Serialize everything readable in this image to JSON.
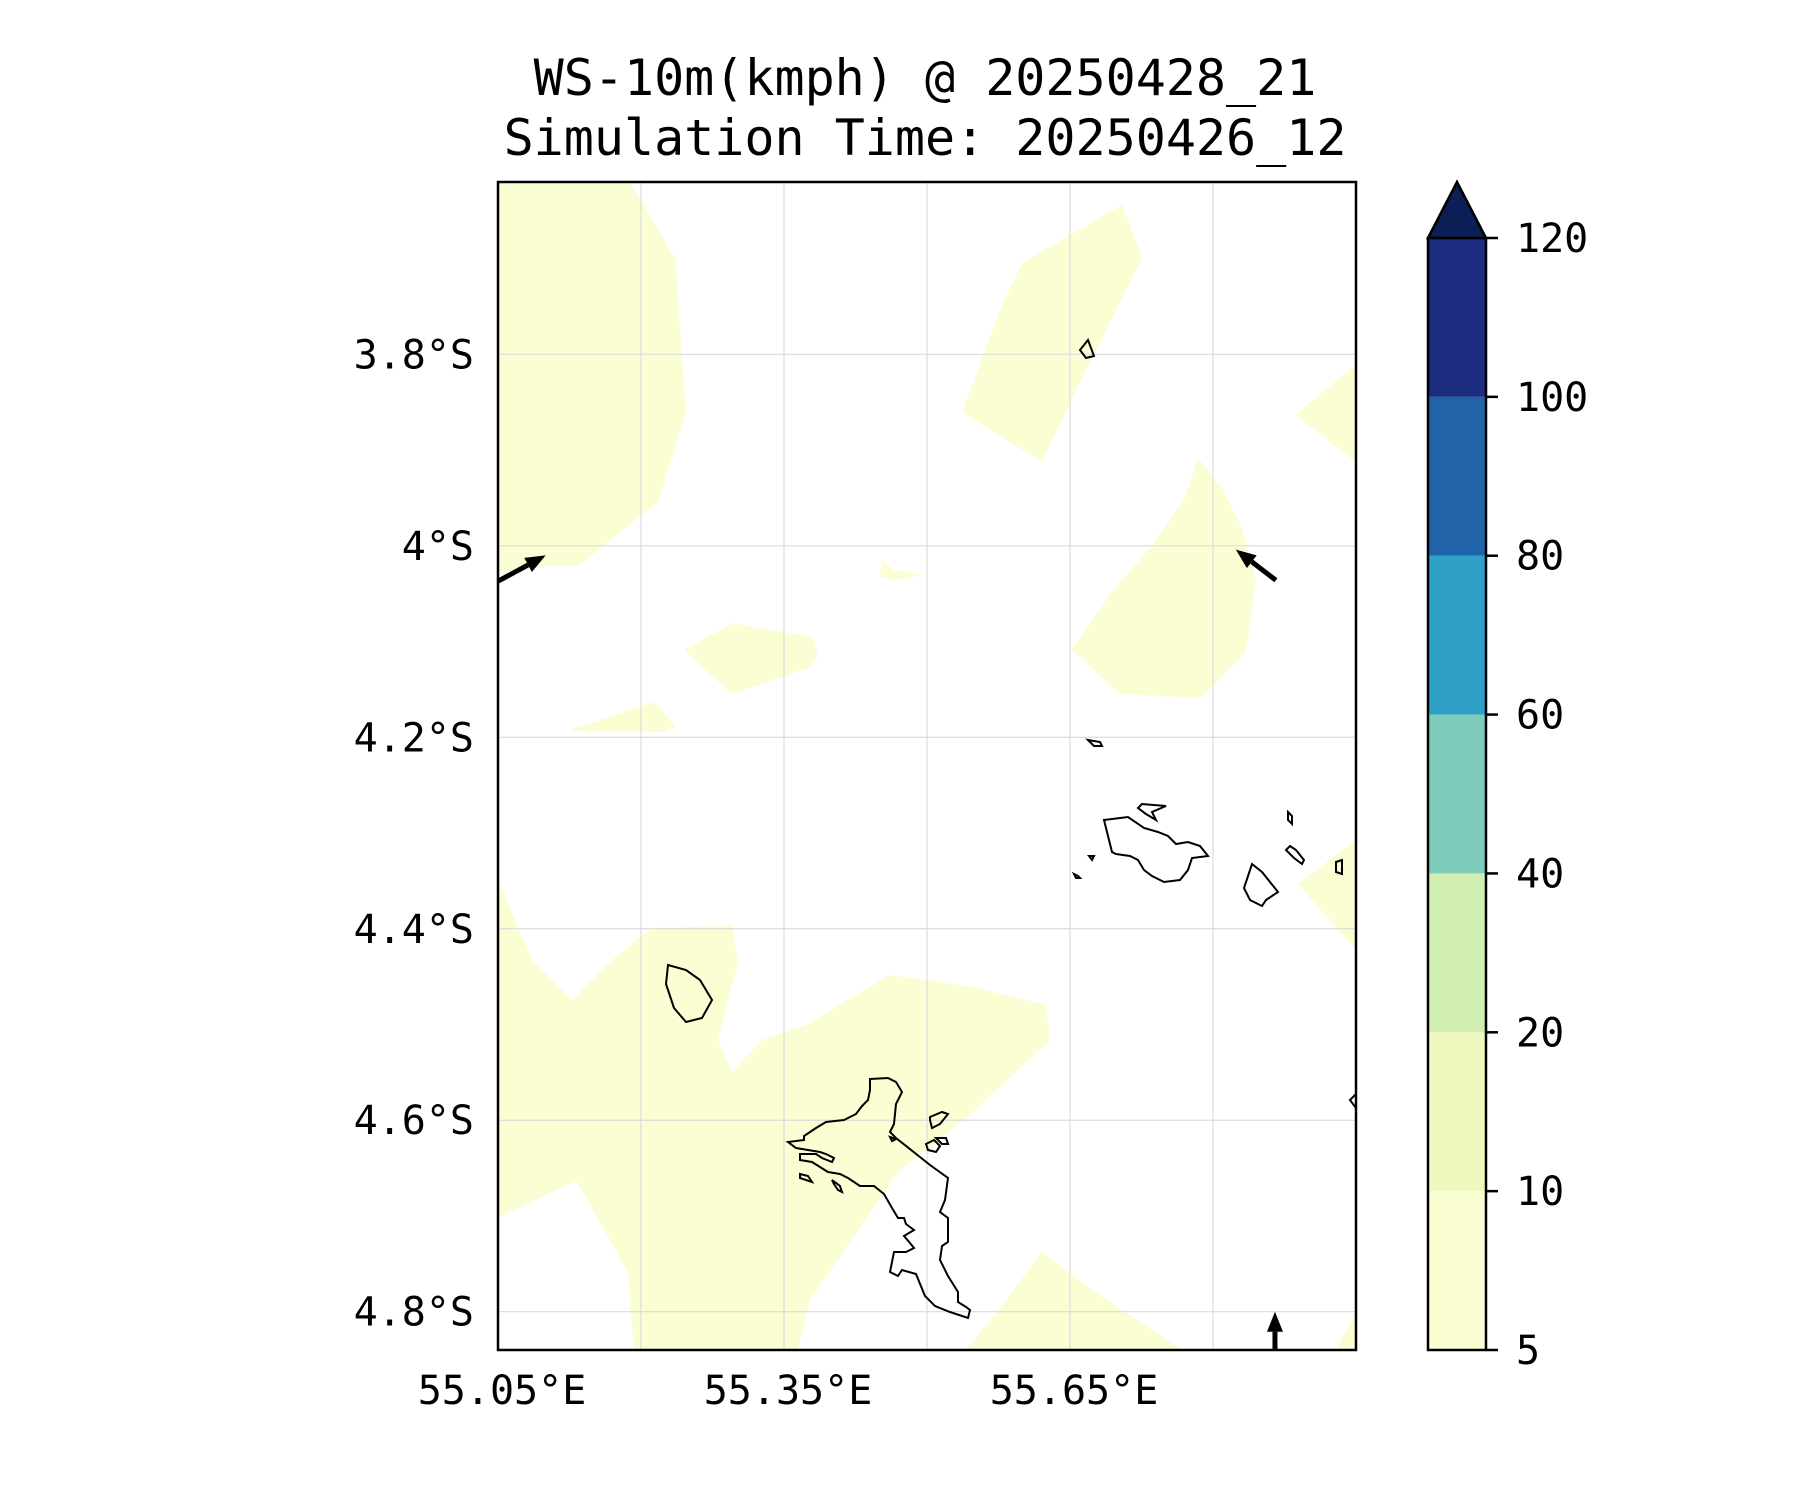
{
  "title": {
    "line1": "WS-10m(kmph) @ 20250428_21",
    "line2": "Simulation Time: 20250426_12"
  },
  "map": {
    "lon_range": [
      55.05,
      55.95
    ],
    "lat_range": [
      -4.84,
      -3.62
    ],
    "lat_ticks": [
      {
        "value": -3.8,
        "label": "3.8°S"
      },
      {
        "value": -4.0,
        "label": "4°S"
      },
      {
        "value": -4.2,
        "label": "4.2°S"
      },
      {
        "value": -4.4,
        "label": "4.4°S"
      },
      {
        "value": -4.6,
        "label": "4.6°S"
      },
      {
        "value": -4.8,
        "label": "4.8°S"
      }
    ],
    "lon_ticks": [
      {
        "value": 55.05,
        "label": "55.05°E"
      },
      {
        "value": 55.35,
        "label": "55.35°E"
      },
      {
        "value": 55.65,
        "label": "55.65°E"
      }
    ],
    "grid_lons": [
      55.2,
      55.35,
      55.5,
      55.65,
      55.8
    ],
    "fill_color": "#fbfdd3",
    "wind_vectors": [
      {
        "name": "wind-arrow-west",
        "lon": 55.05,
        "lat": -4.037,
        "dlon": 0.05,
        "dlat": 0.027
      },
      {
        "name": "wind-arrow-east",
        "lon": 55.866,
        "lat": -4.036,
        "dlon": -0.042,
        "dlat": 0.032
      },
      {
        "name": "wind-arrow-south",
        "lon": 55.865,
        "lat": -4.84,
        "dlon": 0.0,
        "dlat": 0.04
      }
    ]
  },
  "colorbar": {
    "levels": [
      5,
      10,
      20,
      40,
      60,
      80,
      100,
      120
    ],
    "tick_labels": [
      "5",
      "10",
      "20",
      "40",
      "60",
      "80",
      "100",
      "120"
    ],
    "colors": [
      "#fbfdd3",
      "#eff9bd",
      "#d1eeb3",
      "#7fcbbb",
      "#2fa1c6",
      "#2163a9",
      "#1c2c7f",
      "#0b1e56"
    ],
    "extend": "max"
  }
}
